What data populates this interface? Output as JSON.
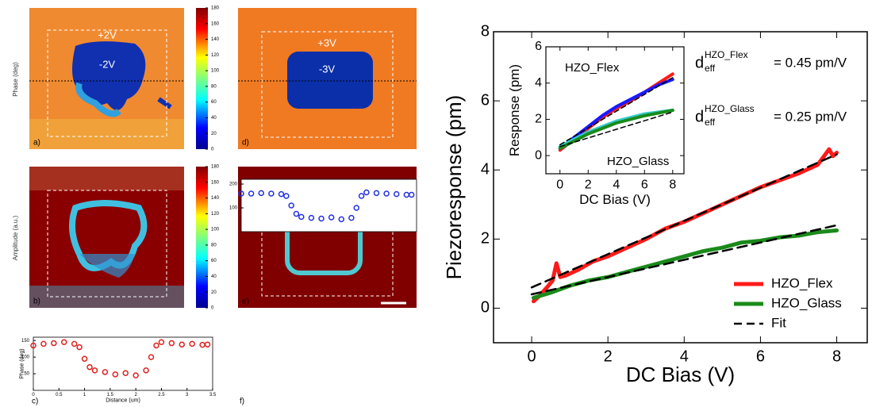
{
  "images": {
    "phase_label": "Phase (deg)",
    "amplitude_label": "Amplitude (a.u.)",
    "panel_labels": [
      "a)",
      "b)",
      "d)",
      "e)"
    ],
    "box_labels": [
      "+2V",
      "-2V",
      "+3V",
      "-3V"
    ],
    "colorbar_ticks": [
      0,
      20,
      40,
      60,
      80,
      100,
      120,
      140,
      160,
      180
    ]
  },
  "chart_data": [
    {
      "type": "line",
      "xlabel": "DC Bias (V)",
      "ylabel": "Piezoresponse (pm)",
      "xlim": [
        -1,
        8.8
      ],
      "ylim": [
        -1,
        8
      ],
      "xticks": [
        0,
        2,
        4,
        6,
        8
      ],
      "yticks": [
        0,
        2,
        4,
        6,
        8
      ],
      "legend": "lower right",
      "series": [
        {
          "name": "HZO_Flex",
          "color": "#ff1a1a",
          "x": [
            0.05,
            0.2,
            0.4,
            0.55,
            0.65,
            0.75,
            0.9,
            1.2,
            1.6,
            2,
            2.5,
            3,
            3.5,
            4,
            4.5,
            5,
            5.5,
            6,
            6.5,
            7,
            7.5,
            7.8,
            7.9,
            8
          ],
          "values": [
            0.2,
            0.35,
            0.6,
            0.8,
            1.3,
            0.9,
            0.95,
            1.1,
            1.35,
            1.5,
            1.75,
            2.0,
            2.3,
            2.5,
            2.75,
            3.0,
            3.25,
            3.5,
            3.7,
            3.9,
            4.15,
            4.6,
            4.4,
            4.5
          ]
        },
        {
          "name": "HZO_Glass",
          "color": "#1a8a1a",
          "x": [
            0.05,
            0.5,
            1,
            1.5,
            2,
            2.5,
            3,
            3.5,
            4,
            4.5,
            5,
            5.5,
            6,
            6.5,
            7,
            7.5,
            8
          ],
          "values": [
            0.3,
            0.45,
            0.65,
            0.8,
            0.9,
            1.05,
            1.2,
            1.35,
            1.5,
            1.65,
            1.75,
            1.9,
            1.95,
            2.05,
            2.1,
            2.2,
            2.25
          ]
        },
        {
          "name": "Fit",
          "color": "#000000",
          "dash": true,
          "x": [
            0,
            8
          ],
          "values": [
            0.6,
            4.45
          ]
        },
        {
          "color": "#000000",
          "dash": true,
          "x": [
            0,
            8
          ],
          "values": [
            0.4,
            2.4
          ]
        }
      ],
      "annotations": [
        {
          "base": "d",
          "sup": "HZO_Flex",
          "sub": "eff",
          "text": "= 0.45 pm/V"
        },
        {
          "base": "d",
          "sup": "HZO_Glass",
          "sub": "eff",
          "text": "= 0.25 pm/V"
        }
      ]
    },
    {
      "type": "line",
      "xlabel": "DC Bias (V)",
      "ylabel": "Response (pm)",
      "xlim": [
        -1,
        8.8
      ],
      "ylim": [
        -1,
        6
      ],
      "xticks": [
        0,
        2,
        4,
        6,
        8
      ],
      "yticks": [
        0,
        2,
        4,
        6
      ],
      "series": [
        {
          "color": "#ff1a1a",
          "x": [
            0,
            1,
            2,
            3,
            4,
            5,
            6,
            7,
            8
          ],
          "values": [
            0.3,
            0.9,
            1.5,
            2.1,
            2.6,
            3.0,
            3.5,
            4.0,
            4.5
          ]
        },
        {
          "color": "#1a1aff",
          "x": [
            0,
            1,
            2,
            3,
            4,
            5,
            6,
            7,
            8
          ],
          "values": [
            0.4,
            1.0,
            1.6,
            2.2,
            2.7,
            3.1,
            3.5,
            3.9,
            4.2
          ]
        },
        {
          "color": "#33cccc",
          "x": [
            0,
            1,
            2,
            3,
            4,
            5,
            6,
            7,
            8
          ],
          "values": [
            0.5,
            0.9,
            1.3,
            1.6,
            1.9,
            2.1,
            2.3,
            2.4,
            2.5
          ]
        },
        {
          "color": "#1a8a1a",
          "x": [
            0,
            1,
            2,
            3,
            4,
            5,
            6,
            7,
            8
          ],
          "values": [
            0.4,
            0.8,
            1.2,
            1.5,
            1.8,
            2.0,
            2.2,
            2.35,
            2.5
          ]
        },
        {
          "color": "#000000",
          "dash": true,
          "x": [
            0,
            8
          ],
          "values": [
            0.6,
            4.3
          ]
        },
        {
          "color": "#000000",
          "dash": true,
          "x": [
            0,
            8
          ],
          "values": [
            0.5,
            2.4
          ]
        }
      ],
      "annotations": [
        {
          "text": "HZO_Flex"
        },
        {
          "text": "HZO_Glass"
        }
      ]
    },
    {
      "type": "scatter",
      "xlabel": "Distance (um)",
      "ylabel": "Phase (deg)",
      "panel": "c)",
      "xlim": [
        0,
        3.5
      ],
      "ylim": [
        0,
        160
      ],
      "xticks": [
        0,
        0.5,
        1,
        1.5,
        2,
        2.5,
        3,
        3.5
      ],
      "yticks": [
        50,
        100,
        150
      ],
      "series": [
        {
          "color": "#e02020",
          "x": [
            0,
            0.2,
            0.4,
            0.6,
            0.8,
            0.9,
            1.0,
            1.1,
            1.2,
            1.4,
            1.6,
            1.8,
            2.0,
            2.2,
            2.3,
            2.4,
            2.5,
            2.7,
            2.9,
            3.1,
            3.3,
            3.4
          ],
          "values": [
            135,
            140,
            142,
            145,
            140,
            130,
            95,
            70,
            60,
            55,
            48,
            52,
            45,
            60,
            100,
            135,
            145,
            142,
            138,
            140,
            137,
            138
          ]
        }
      ]
    },
    {
      "type": "scatter",
      "panel": "f)",
      "xlim": [
        0,
        3.5
      ],
      "ylim": [
        0,
        220
      ],
      "yticks": [
        100,
        200
      ],
      "series": [
        {
          "color": "#2030e0",
          "x": [
            0,
            0.2,
            0.4,
            0.6,
            0.8,
            0.9,
            1.0,
            1.1,
            1.2,
            1.4,
            1.6,
            1.8,
            2.0,
            2.2,
            2.3,
            2.4,
            2.5,
            2.7,
            2.9,
            3.1,
            3.3,
            3.4
          ],
          "values": [
            160,
            160,
            162,
            160,
            158,
            150,
            110,
            75,
            62,
            58,
            55,
            60,
            52,
            58,
            100,
            150,
            165,
            162,
            160,
            158,
            155,
            155
          ]
        }
      ]
    }
  ]
}
